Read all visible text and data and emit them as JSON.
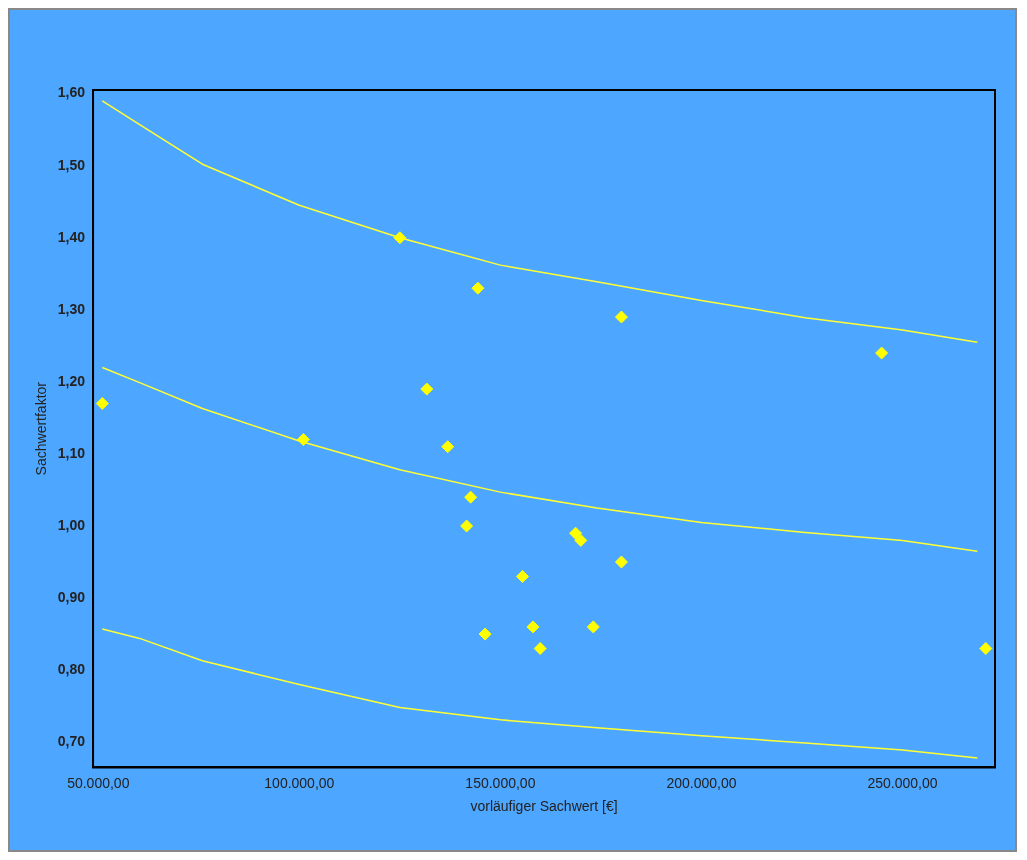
{
  "chart_data": {
    "type": "scatter",
    "xlabel": "vorläufiger Sachwert [€]",
    "ylabel": "Sachwertfaktor",
    "xlim": [
      48700,
      273000
    ],
    "ylim": [
      0.665,
      1.605
    ],
    "xticks": [
      {
        "value": 50000,
        "label": "50.000,00"
      },
      {
        "value": 100000,
        "label": "100.000,00"
      },
      {
        "value": 150000,
        "label": "150.000,00"
      },
      {
        "value": 200000,
        "label": "200.000,00"
      },
      {
        "value": 250000,
        "label": "250.000,00"
      }
    ],
    "yticks": [
      {
        "value": 0.7,
        "label": "0,70"
      },
      {
        "value": 0.8,
        "label": "0,80"
      },
      {
        "value": 0.9,
        "label": "0,90"
      },
      {
        "value": 1.0,
        "label": "1,00"
      },
      {
        "value": 1.1,
        "label": "1,10"
      },
      {
        "value": 1.2,
        "label": "1,20"
      },
      {
        "value": 1.3,
        "label": "1,30"
      },
      {
        "value": 1.4,
        "label": "1,40"
      },
      {
        "value": 1.5,
        "label": "1,50"
      },
      {
        "value": 1.6,
        "label": "1,60"
      }
    ],
    "grid": false,
    "legend": false,
    "marker": "diamond",
    "series": [
      {
        "color": "#ffff00",
        "x": [
          51000,
          101000,
          125000,
          131700,
          136900,
          144400,
          142600,
          141600,
          146200,
          155500,
          158100,
          159900,
          168700,
          170000,
          173100,
          180100,
          180100,
          244800,
          270700
        ],
        "values": [
          1.17,
          1.12,
          1.4,
          1.19,
          1.11,
          1.33,
          1.04,
          1.0,
          0.85,
          0.93,
          0.86,
          0.83,
          0.99,
          0.98,
          0.86,
          0.95,
          1.29,
          1.24,
          0.83
        ]
      },
      {
        "type": "line",
        "color": "#ffff33",
        "marker": "none",
        "x": [
          51000,
          60300,
          75900,
          100000,
          125000,
          150000,
          174000,
          200000,
          225800,
          250000,
          268600
        ],
        "values": [
          1.59,
          1.557,
          1.502,
          1.445,
          1.4,
          1.362,
          1.339,
          1.313,
          1.289,
          1.272,
          1.255
        ]
      },
      {
        "type": "line",
        "color": "#ffff33",
        "marker": "none",
        "x": [
          51000,
          60300,
          75900,
          100000,
          125000,
          150000,
          174000,
          200000,
          225800,
          250000,
          268600
        ],
        "values": [
          1.22,
          1.199,
          1.163,
          1.118,
          1.078,
          1.047,
          1.025,
          1.005,
          0.991,
          0.98,
          0.965
        ]
      },
      {
        "type": "line",
        "color": "#ffff33",
        "marker": "none",
        "x": [
          51000,
          60300,
          75900,
          100000,
          125000,
          150000,
          174000,
          200000,
          225800,
          250000,
          268600
        ],
        "values": [
          0.857,
          0.844,
          0.813,
          0.78,
          0.748,
          0.731,
          0.72,
          0.709,
          0.699,
          0.689,
          0.678
        ]
      }
    ]
  }
}
